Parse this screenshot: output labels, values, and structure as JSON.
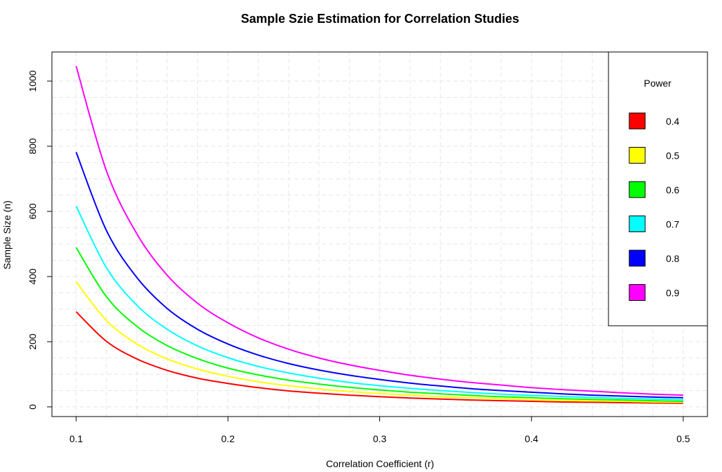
{
  "chart_data": {
    "type": "line",
    "title": "Sample Szie Estimation for Correlation Studies",
    "xlabel": "Correlation Coefficient (r)",
    "ylabel": "Sample Size (n)",
    "xlim": [
      0.1,
      0.5
    ],
    "ylim": [
      0,
      1040
    ],
    "x_ticks": [
      "0.1",
      "0.2",
      "0.3",
      "0.4",
      "0.5"
    ],
    "y_ticks": [
      "0",
      "200",
      "400",
      "600",
      "800",
      "1000"
    ],
    "grid": true,
    "legend_position": "top-right",
    "legend_title": "Power",
    "x": [
      0.1,
      0.12,
      0.14,
      0.16,
      0.18,
      0.2,
      0.22,
      0.24,
      0.26,
      0.28,
      0.3,
      0.32,
      0.34,
      0.36,
      0.38,
      0.4,
      0.42,
      0.44,
      0.46,
      0.48,
      0.5
    ],
    "series": [
      {
        "name": "0.4",
        "color": "#ff0000",
        "values": [
          292,
          201,
          147,
          112,
          88,
          72,
          59,
          49,
          42,
          36,
          31,
          27,
          24,
          21,
          19,
          17,
          15,
          14,
          13,
          12,
          11
        ]
      },
      {
        "name": "0.5",
        "color": "#ffff00",
        "values": [
          384,
          265,
          193,
          147,
          116,
          94,
          77,
          65,
          55,
          47,
          41,
          36,
          31,
          28,
          25,
          22,
          20,
          18,
          17,
          15,
          14
        ]
      },
      {
        "name": "0.6",
        "color": "#00ff00",
        "values": [
          489,
          338,
          247,
          188,
          148,
          119,
          98,
          82,
          70,
          60,
          52,
          45,
          40,
          35,
          31,
          28,
          25,
          23,
          21,
          19,
          17
        ]
      },
      {
        "name": "0.7",
        "color": "#00ffff",
        "values": [
          616,
          427,
          312,
          238,
          187,
          151,
          124,
          104,
          88,
          75,
          65,
          57,
          50,
          44,
          39,
          35,
          32,
          29,
          26,
          24,
          22
        ]
      },
      {
        "name": "0.8",
        "color": "#0000ff",
        "values": [
          782,
          541,
          397,
          302,
          238,
          193,
          159,
          133,
          113,
          97,
          84,
          73,
          64,
          56,
          50,
          45,
          40,
          36,
          33,
          30,
          28
        ]
      },
      {
        "name": "0.9",
        "color": "#ff00ff",
        "values": [
          1046,
          724,
          531,
          404,
          318,
          258,
          212,
          177,
          150,
          129,
          112,
          97,
          85,
          75,
          67,
          59,
          53,
          48,
          43,
          39,
          36
        ]
      }
    ]
  }
}
